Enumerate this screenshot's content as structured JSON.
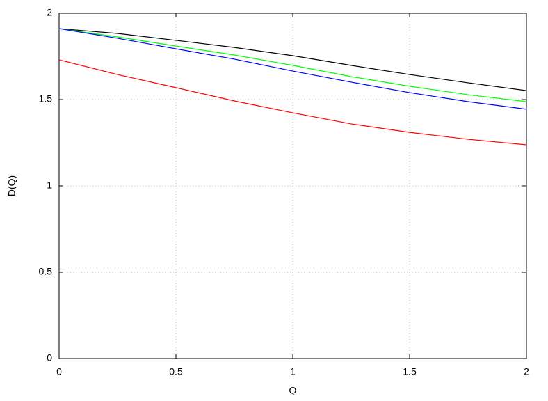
{
  "chart_data": {
    "type": "line",
    "x_label": "Q",
    "y_label": "D(Q)",
    "x": [
      0,
      0.25,
      0.5,
      0.75,
      1,
      1.25,
      1.5,
      1.75,
      2
    ],
    "series": [
      {
        "color": "#000000",
        "values": [
          1.911,
          1.883,
          1.843,
          1.802,
          1.754,
          1.698,
          1.645,
          1.597,
          1.552
        ]
      },
      {
        "color": "#00ff00",
        "values": [
          1.911,
          1.863,
          1.81,
          1.758,
          1.698,
          1.633,
          1.577,
          1.528,
          1.488
        ]
      },
      {
        "color": "#0000ff",
        "values": [
          1.911,
          1.855,
          1.794,
          1.734,
          1.665,
          1.601,
          1.54,
          1.488,
          1.444
        ]
      },
      {
        "color": "#ff0000",
        "values": [
          1.73,
          1.645,
          1.569,
          1.492,
          1.423,
          1.359,
          1.31,
          1.27,
          1.238
        ]
      }
    ],
    "xlim": [
      0,
      2
    ],
    "xticks": [
      0,
      0.5,
      1,
      1.5,
      2
    ],
    "ylim": [
      0,
      2
    ],
    "yticks": [
      0,
      0.5,
      1,
      1.5,
      2
    ],
    "grid": true
  }
}
